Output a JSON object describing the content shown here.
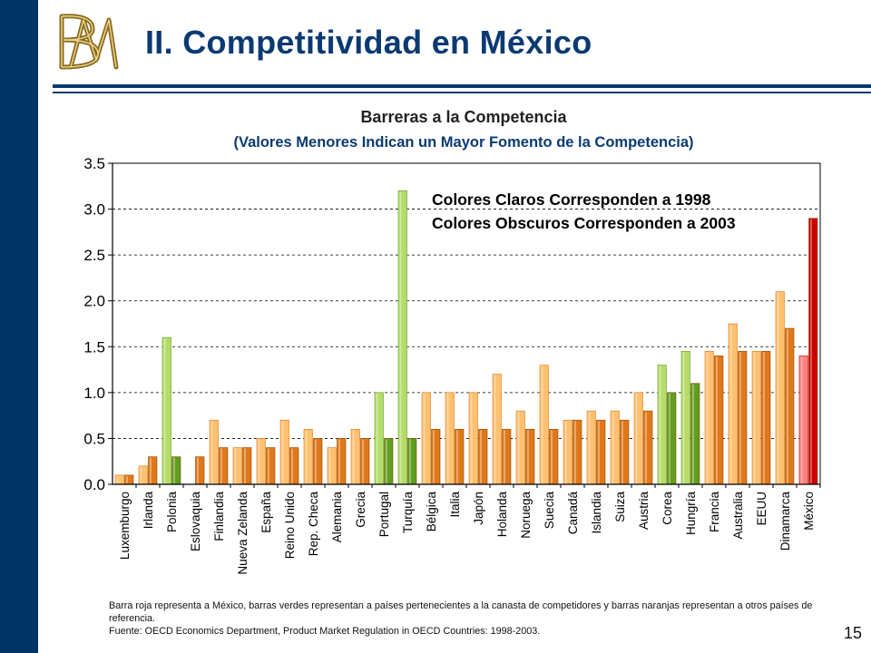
{
  "slide": {
    "title": "II. Competitividad en México",
    "logo_letters": "BM",
    "page_number": "15"
  },
  "colors": {
    "left_bar": "#003366",
    "title": "#0b3a72",
    "orange_light": "#ffc070",
    "orange_dark": "#e0781a",
    "green_light": "#b5dc6a",
    "green_dark": "#5f9e1e",
    "red_light": "#ff8080",
    "red_dark": "#cc0000"
  },
  "chart_data": {
    "type": "bar",
    "title": "Barreras a la Competencia",
    "subtitle": "(Valores Menores Indican un Mayor Fomento de la Competencia)",
    "ylim": [
      0,
      3.5
    ],
    "yticks": [
      "0.0",
      "0.5",
      "1.0",
      "1.5",
      "2.0",
      "2.5",
      "3.0",
      "3.5"
    ],
    "grid": "dashed horizontal",
    "legend_lines": [
      "Colores Claros Corresponden a 1998",
      "Colores Obscuros Corresponden a 2003"
    ],
    "categories": [
      "Luxemburgo",
      "Irlanda",
      "Polonia",
      "Eslovaquia",
      "Finlandia",
      "Nueva Zelanda",
      "España",
      "Reino Unido",
      "Rep. Checa",
      "Alemania",
      "Grecia",
      "Portugal",
      "Turquía",
      "Bélgica",
      "Italia",
      "Japón",
      "Holanda",
      "Noruega",
      "Suecia",
      "Canadá",
      "Islandia",
      "Suiza",
      "Austria",
      "Corea",
      "Hungría",
      "Francia",
      "Australia",
      "EEUU",
      "Dinamarca",
      "México"
    ],
    "groups": [
      "other",
      "other",
      "competitor",
      "other",
      "other",
      "other",
      "other",
      "other",
      "other",
      "other",
      "other",
      "competitor",
      "competitor",
      "other",
      "other",
      "other",
      "other",
      "other",
      "other",
      "other",
      "other",
      "other",
      "other",
      "competitor",
      "competitor",
      "other",
      "other",
      "other",
      "other",
      "mexico"
    ],
    "series": [
      {
        "year": "1998",
        "values": [
          0.1,
          0.2,
          1.6,
          0.0,
          0.7,
          0.4,
          0.5,
          0.7,
          0.6,
          0.4,
          0.6,
          1.0,
          3.2,
          1.0,
          1.0,
          1.0,
          1.2,
          0.8,
          1.3,
          0.7,
          0.8,
          0.8,
          1.0,
          1.3,
          1.45,
          1.45,
          1.75,
          1.45,
          2.1,
          1.4
        ]
      },
      {
        "year": "2003",
        "values": [
          0.1,
          0.3,
          0.3,
          0.3,
          0.4,
          0.4,
          0.4,
          0.4,
          0.5,
          0.5,
          0.5,
          0.5,
          0.5,
          0.6,
          0.6,
          0.6,
          0.6,
          0.6,
          0.6,
          0.7,
          0.7,
          0.7,
          0.8,
          1.0,
          1.1,
          1.4,
          1.45,
          1.45,
          1.7,
          2.9
        ]
      }
    ]
  },
  "footnote": {
    "line1": "Barra roja representa a México, barras verdes representan a países pertenecientes a la canasta de competidores y barras naranjas representan a otros países de referencia.",
    "line2": "Fuente: OECD Economics Department, Product Market Regulation in OECD Countries: 1998-2003."
  }
}
